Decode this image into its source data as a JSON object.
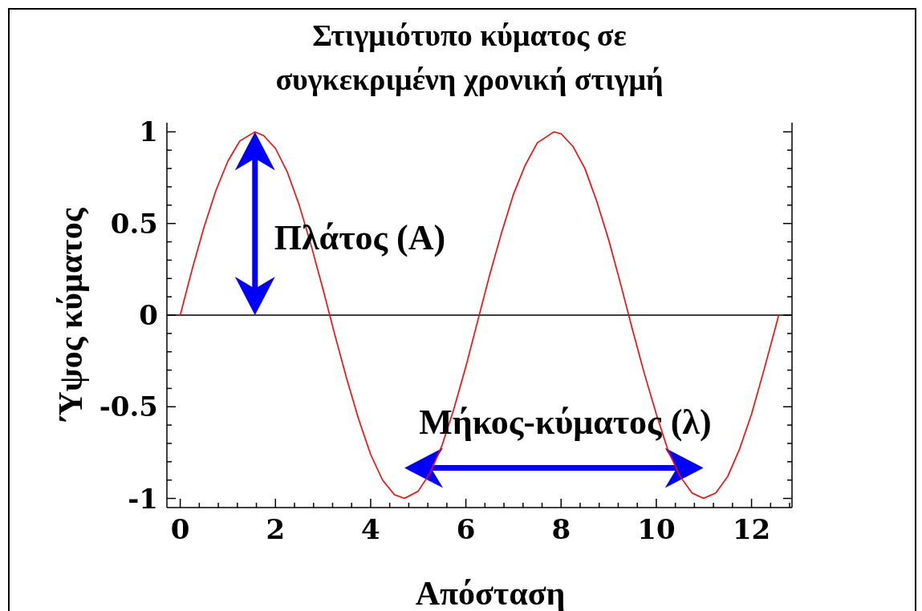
{
  "chart_data": {
    "type": "line",
    "title": "Στιγμιότυπο κύματος σε συγκεκριμένη χρονική στιγμή",
    "xlabel": "Απόσταση",
    "ylabel": "Ύψος κύματος",
    "annotations": [
      "Πλάτος (Α)",
      "Μήκος-κύματος (λ)"
    ],
    "x": [
      0,
      0.25,
      0.5,
      0.75,
      1,
      1.25,
      1.57,
      1.75,
      2,
      2.25,
      2.5,
      2.75,
      3,
      3.25,
      3.5,
      3.75,
      4,
      4.25,
      4.5,
      4.71,
      5,
      5.25,
      5.5,
      5.75,
      6,
      6.25,
      6.5,
      6.75,
      7,
      7.25,
      7.5,
      7.85,
      8,
      8.25,
      8.5,
      8.75,
      9,
      9.25,
      9.5,
      9.75,
      10,
      10.25,
      10.5,
      10.75,
      10.99,
      11.25,
      11.5,
      11.75,
      12,
      12.25,
      12.5,
      12.57
    ],
    "values": [
      0,
      0.25,
      0.48,
      0.68,
      0.84,
      0.95,
      1,
      0.98,
      0.91,
      0.78,
      0.6,
      0.38,
      0.14,
      -0.11,
      -0.35,
      -0.57,
      -0.76,
      -0.9,
      -0.98,
      -1,
      -0.96,
      -0.86,
      -0.71,
      -0.51,
      -0.28,
      -0.03,
      0.22,
      0.45,
      0.66,
      0.82,
      0.94,
      1,
      0.99,
      0.92,
      0.8,
      0.62,
      0.41,
      0.17,
      -0.08,
      -0.32,
      -0.54,
      -0.74,
      -0.88,
      -0.97,
      -1,
      -0.97,
      -0.88,
      -0.73,
      -0.54,
      -0.31,
      -0.07,
      0
    ],
    "color": "#ff0000",
    "marker": "none",
    "line_style": "solid",
    "xlim": [
      -0.28,
      12.85
    ],
    "ylim": [
      -1.05,
      1.05
    ],
    "xticks": [
      0,
      {
        "value": 0.4,
        "label": null
      },
      {
        "value": 0.8,
        "label": null
      },
      {
        "value": 1.2,
        "label": null
      },
      {
        "value": 1.6,
        "label": null
      },
      2,
      {
        "value": 2.4,
        "label": null
      },
      {
        "value": 2.8,
        "label": null
      },
      {
        "value": 3.2,
        "label": null
      },
      {
        "value": 3.6,
        "label": null
      },
      4,
      {
        "value": 4.4,
        "label": null
      },
      {
        "value": 4.8,
        "label": null
      },
      {
        "value": 5.2,
        "label": null
      },
      {
        "value": 5.6,
        "label": null
      },
      6,
      {
        "value": 6.4,
        "label": null
      },
      {
        "value": 6.8,
        "label": null
      },
      {
        "value": 7.2,
        "label": null
      },
      {
        "value": 7.6,
        "label": null
      },
      8,
      {
        "value": 8.4,
        "label": null
      },
      {
        "value": 8.8,
        "label": null
      },
      {
        "value": 9.2,
        "label": null
      },
      {
        "value": 9.6,
        "label": null
      },
      10,
      {
        "value": 10.4,
        "label": null
      },
      {
        "value": 10.8,
        "label": null
      },
      {
        "value": 11.2,
        "label": null
      },
      {
        "value": 11.6,
        "label": null
      },
      12,
      {
        "value": 12.4,
        "label": null
      },
      {
        "value": 12.8,
        "label": null
      }
    ],
    "yticks": [
      -1,
      {
        "value": -0.9,
        "label": null
      },
      {
        "value": -0.8,
        "label": null
      },
      {
        "value": -0.7,
        "label": null
      },
      {
        "value": -0.6,
        "label": null
      },
      -0.5,
      {
        "value": -0.4,
        "label": null
      },
      {
        "value": -0.3,
        "label": null
      },
      {
        "value": -0.2,
        "label": null
      },
      {
        "value": -0.1,
        "label": null
      },
      0,
      {
        "value": 0.1,
        "label": null
      },
      {
        "value": 0.2,
        "label": null
      },
      {
        "value": 0.3,
        "label": null
      },
      {
        "value": 0.4,
        "label": null
      },
      0.5,
      {
        "value": 0.6,
        "label": null
      },
      {
        "value": 0.7,
        "label": null
      },
      {
        "value": 0.8,
        "label": null
      },
      {
        "value": 0.9,
        "label": null
      },
      1
    ],
    "ref_lines": [
      {
        "axis": "y",
        "value": 0,
        "color": "#000000"
      }
    ]
  }
}
